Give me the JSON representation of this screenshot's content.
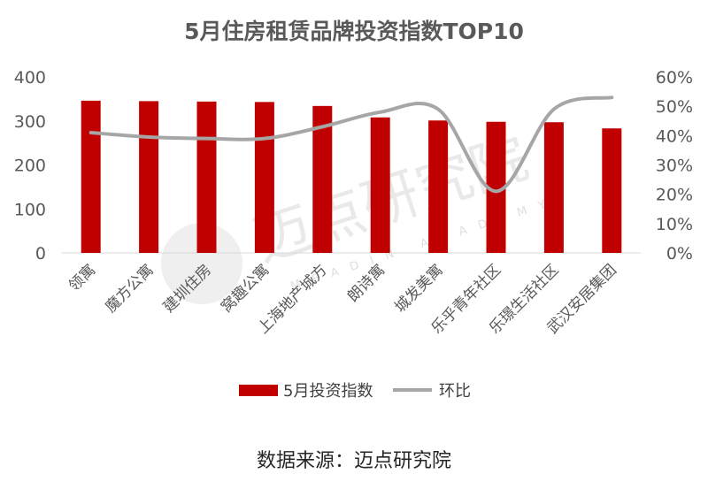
{
  "chart_data": {
    "type": "bar",
    "title": "5月住房租赁品牌投资指数TOP10",
    "categories": [
      "领寓",
      "魔方公寓",
      "建圳住房",
      "窝趣公寓",
      "上海地产城方",
      "朗诗寓",
      "城发美寓",
      "乐乎青年社区",
      "乐璟生活社区",
      "武汉安居集团"
    ],
    "series": [
      {
        "name": "5月投资指数",
        "type": "bar",
        "axis": "left",
        "color": "#C00000",
        "values": [
          346,
          345,
          344,
          343,
          334,
          308,
          301,
          298,
          297,
          283
        ]
      },
      {
        "name": "环比",
        "type": "line",
        "axis": "right",
        "color": "#A6A6A6",
        "values": [
          0.41,
          0.395,
          0.39,
          0.39,
          0.43,
          0.48,
          0.49,
          0.21,
          0.49,
          0.53
        ]
      }
    ],
    "y_left": {
      "min": 0,
      "max": 400,
      "ticks": [
        "0",
        "100",
        "200",
        "300",
        "400"
      ]
    },
    "y_right": {
      "min": 0,
      "max": 0.6,
      "ticks": [
        "0%",
        "10%",
        "20%",
        "30%",
        "40%",
        "50%",
        "60%"
      ]
    },
    "legend_position": "bottom",
    "grid": false
  },
  "source": "数据来源：迈点研究院",
  "watermark": {
    "text": "迈点研究院",
    "subtext": "MEADIN ACADEMY"
  }
}
